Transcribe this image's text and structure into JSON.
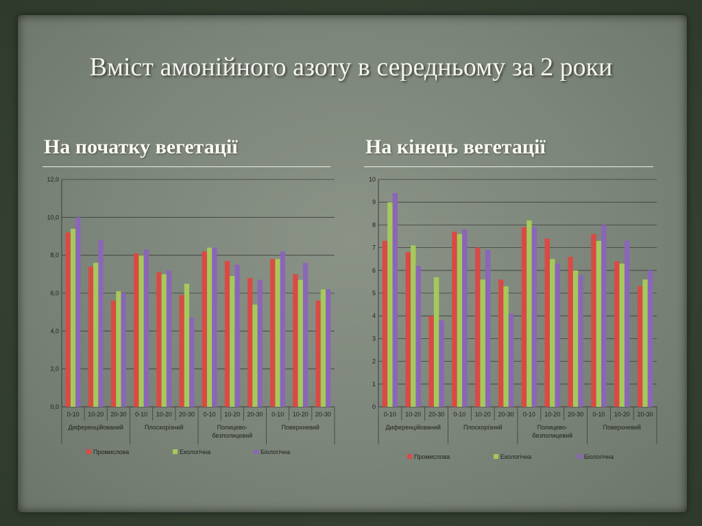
{
  "title": "Вміст амонійного азоту в середньому за 2 роки",
  "subtitles": {
    "left": "На початку вегетації",
    "right": "На кінець вегетації"
  },
  "colors": {
    "Промислова": "#d94a45",
    "Екологічна": "#a5c95a",
    "Біологічна": "#8a66b8"
  },
  "chart_data": [
    {
      "type": "bar",
      "title": "",
      "xlabel": "",
      "ylabel": "",
      "ylim": [
        0,
        12
      ],
      "yticks": [
        "0,0",
        "2,0",
        "4,0",
        "6,0",
        "8,0",
        "10,0",
        "12,0"
      ],
      "groups": [
        "Диференційований",
        "Плоскорізний",
        "Полицево-\nбезполицевий",
        "Поверхневий"
      ],
      "categories": [
        "0-10",
        "10-20",
        "20-30",
        "0-10",
        "10-20",
        "20-30",
        "0-10",
        "10-20",
        "20-30",
        "0-10",
        "10-20",
        "20-30"
      ],
      "legend_position": "bottom",
      "grid": true,
      "series": [
        {
          "name": "Промислова",
          "values": [
            9.2,
            7.4,
            5.6,
            8.1,
            7.1,
            5.9,
            8.2,
            7.7,
            6.8,
            7.8,
            7.0,
            5.6
          ]
        },
        {
          "name": "Екологічна",
          "values": [
            9.4,
            7.6,
            6.1,
            8.0,
            7.0,
            6.5,
            8.4,
            6.9,
            5.4,
            7.8,
            6.7,
            6.2
          ]
        },
        {
          "name": "Біологічна",
          "values": [
            10.0,
            8.8,
            6.0,
            8.3,
            7.2,
            4.7,
            8.4,
            7.5,
            6.7,
            8.2,
            7.6,
            6.2
          ]
        }
      ]
    },
    {
      "type": "bar",
      "title": "",
      "xlabel": "",
      "ylabel": "",
      "ylim": [
        0,
        10
      ],
      "yticks": [
        "0",
        "1",
        "2",
        "3",
        "4",
        "5",
        "6",
        "7",
        "8",
        "9",
        "10"
      ],
      "groups": [
        "Диференційований",
        "Плоскорізний",
        "Полицево-\nбезполицевий",
        "Поверхневий"
      ],
      "categories": [
        "0-10",
        "10-20",
        "20-30",
        "0-10",
        "10-20",
        "20-30",
        "0-10",
        "10-20",
        "20-30",
        "0-10",
        "10-20",
        "20-30"
      ],
      "legend_position": "bottom",
      "grid": true,
      "series": [
        {
          "name": "Промислова",
          "values": [
            7.3,
            6.8,
            4.0,
            7.7,
            7.0,
            5.6,
            7.9,
            7.4,
            6.6,
            7.6,
            6.4,
            5.3
          ]
        },
        {
          "name": "Екологічна",
          "values": [
            9.0,
            7.1,
            5.7,
            7.6,
            5.6,
            5.3,
            8.2,
            6.5,
            6.0,
            7.3,
            6.3,
            5.6
          ]
        },
        {
          "name": "Біологічна",
          "values": [
            9.4,
            6.2,
            3.8,
            7.8,
            6.9,
            4.1,
            7.9,
            6.3,
            5.8,
            8.0,
            7.3,
            6.0
          ]
        }
      ]
    }
  ]
}
